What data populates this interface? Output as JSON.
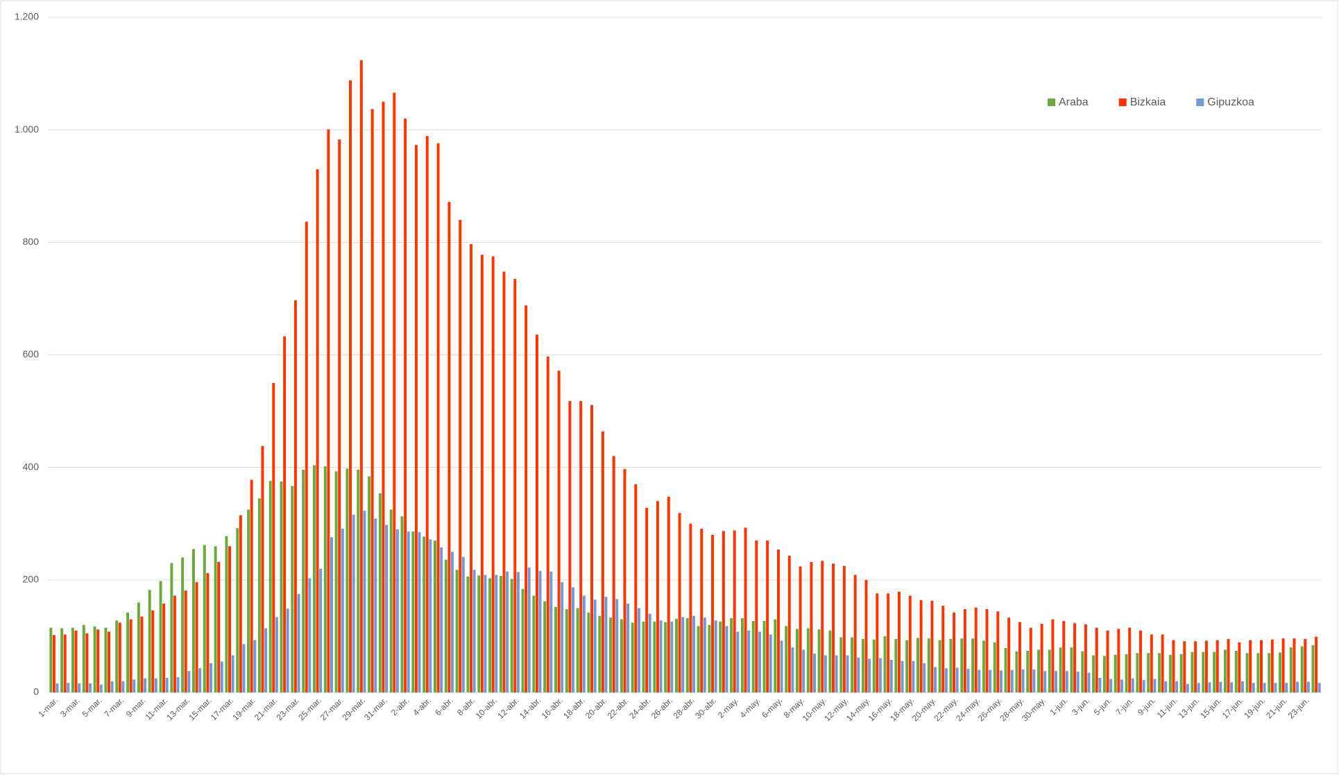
{
  "chart_data": {
    "type": "bar",
    "categories": [
      "1-mar.",
      null,
      "3-mar.",
      null,
      "5-mar.",
      null,
      "7-mar.",
      null,
      "9-mar.",
      null,
      "11-mar.",
      null,
      "13-mar.",
      null,
      "15-mar.",
      null,
      "17-mar.",
      null,
      "19-mar.",
      null,
      "21-mar.",
      null,
      "23-mar.",
      null,
      "25-mar.",
      null,
      "27-mar.",
      null,
      "29-mar.",
      null,
      "31-mar.",
      null,
      "2-abr.",
      null,
      "4-abr.",
      null,
      "6-abr.",
      null,
      "8-abr.",
      null,
      "10-abr.",
      null,
      "12-abr.",
      null,
      "14-abr.",
      null,
      "16-abr.",
      null,
      "18-abr.",
      null,
      "20-abr.",
      null,
      "22-abr.",
      null,
      "24-abr.",
      null,
      "26-abr.",
      null,
      "28-abr.",
      null,
      "30-abr.",
      null,
      "2-may.",
      null,
      "4-may.",
      null,
      "6-may.",
      null,
      "8-may.",
      null,
      "10-may.",
      null,
      "12-may.",
      null,
      "14-may.",
      null,
      "16-may.",
      null,
      "18-may.",
      null,
      "20-may.",
      null,
      "22-may.",
      null,
      "24-may.",
      null,
      "26-may.",
      null,
      "28-may.",
      null,
      "30-may.",
      null,
      "1-jun.",
      null,
      "3-jun.",
      null,
      "5-jun.",
      null,
      "7-jun.",
      null,
      "9-jun.",
      null,
      "11-jun.",
      null,
      "13-jun.",
      null,
      "15-jun.",
      null,
      "17-jun.",
      null,
      "19-jun.",
      null,
      "21-jun.",
      null,
      "23-jun.",
      null
    ],
    "series": [
      {
        "name": "Araba",
        "color": "#6aaa3b",
        "values": [
          115,
          114,
          115,
          120,
          117,
          115,
          128,
          142,
          160,
          182,
          198,
          230,
          240,
          255,
          262,
          260,
          278,
          292,
          325,
          345,
          376,
          375,
          367,
          396,
          404,
          402,
          393,
          398,
          396,
          384,
          354,
          325,
          313,
          286,
          277,
          270,
          236,
          218,
          206,
          208,
          203,
          207,
          202,
          184,
          172,
          162,
          152,
          148,
          150,
          142,
          136,
          133,
          130,
          124,
          126,
          126,
          125,
          131,
          132,
          118,
          120,
          126,
          132,
          132,
          127,
          127,
          130,
          118,
          113,
          114,
          112,
          110,
          98,
          98,
          95,
          94,
          100,
          95,
          93,
          97,
          96,
          93,
          95,
          96,
          96,
          92,
          89,
          79,
          73,
          74,
          76,
          76,
          80,
          80,
          73,
          66,
          65,
          67,
          68,
          70,
          70,
          70,
          67,
          68,
          72,
          72,
          72,
          76,
          74,
          70,
          70,
          70,
          71,
          80,
          82,
          84
        ]
      },
      {
        "name": "Bizkaia",
        "color": "#ff3300",
        "values": [
          102,
          103,
          110,
          105,
          112,
          108,
          124,
          130,
          135,
          146,
          158,
          172,
          181,
          196,
          212,
          232,
          260,
          315,
          378,
          438,
          550,
          633,
          697,
          837,
          930,
          1001,
          983,
          1088,
          1124,
          1037,
          1050,
          1066,
          1020,
          973,
          989,
          976,
          872,
          840,
          797,
          778,
          775,
          748,
          735,
          688,
          636,
          597,
          572,
          518,
          518,
          511,
          464,
          420,
          397,
          370,
          328,
          340,
          348,
          319,
          300,
          291,
          280,
          287,
          288,
          293,
          270,
          270,
          254,
          243,
          224,
          232,
          234,
          229,
          225,
          209,
          200,
          176,
          176,
          179,
          172,
          164,
          163,
          154,
          142,
          148,
          151,
          148,
          144,
          133,
          125,
          115,
          122,
          130,
          127,
          123,
          121,
          115,
          110,
          113,
          115,
          110,
          103,
          103,
          93,
          91,
          91,
          92,
          93,
          95,
          89,
          93,
          93,
          94,
          96,
          96,
          95,
          99
        ]
      },
      {
        "name": "Gipuzkoa",
        "color": "#6f9ad6",
        "values": [
          16,
          17,
          16,
          16,
          14,
          20,
          20,
          23,
          25,
          25,
          26,
          27,
          38,
          43,
          52,
          55,
          66,
          86,
          93,
          114,
          134,
          149,
          175,
          203,
          220,
          276,
          291,
          316,
          323,
          309,
          298,
          290,
          286,
          285,
          272,
          258,
          250,
          241,
          218,
          209,
          209,
          215,
          214,
          222,
          216,
          215,
          196,
          187,
          172,
          165,
          170,
          166,
          158,
          150,
          140,
          128,
          126,
          134,
          136,
          133,
          128,
          118,
          108,
          110,
          108,
          103,
          92,
          80,
          76,
          69,
          66,
          66,
          66,
          62,
          60,
          61,
          58,
          56,
          56,
          52,
          45,
          43,
          44,
          42,
          40,
          40,
          39,
          40,
          41,
          41,
          38,
          38,
          38,
          37,
          35,
          26,
          24,
          23,
          25,
          22,
          24,
          20,
          20,
          15,
          17,
          18,
          19,
          18,
          20,
          17,
          17,
          17,
          17,
          19,
          19,
          17
        ]
      }
    ],
    "ylim": [
      0,
      1200
    ],
    "yticks": [
      0,
      200,
      400,
      600,
      800,
      {
        "value": 1000,
        "label": "1.000"
      },
      {
        "value": 1200,
        "label": "1.200"
      }
    ],
    "grid": true,
    "legend": "top-right"
  }
}
